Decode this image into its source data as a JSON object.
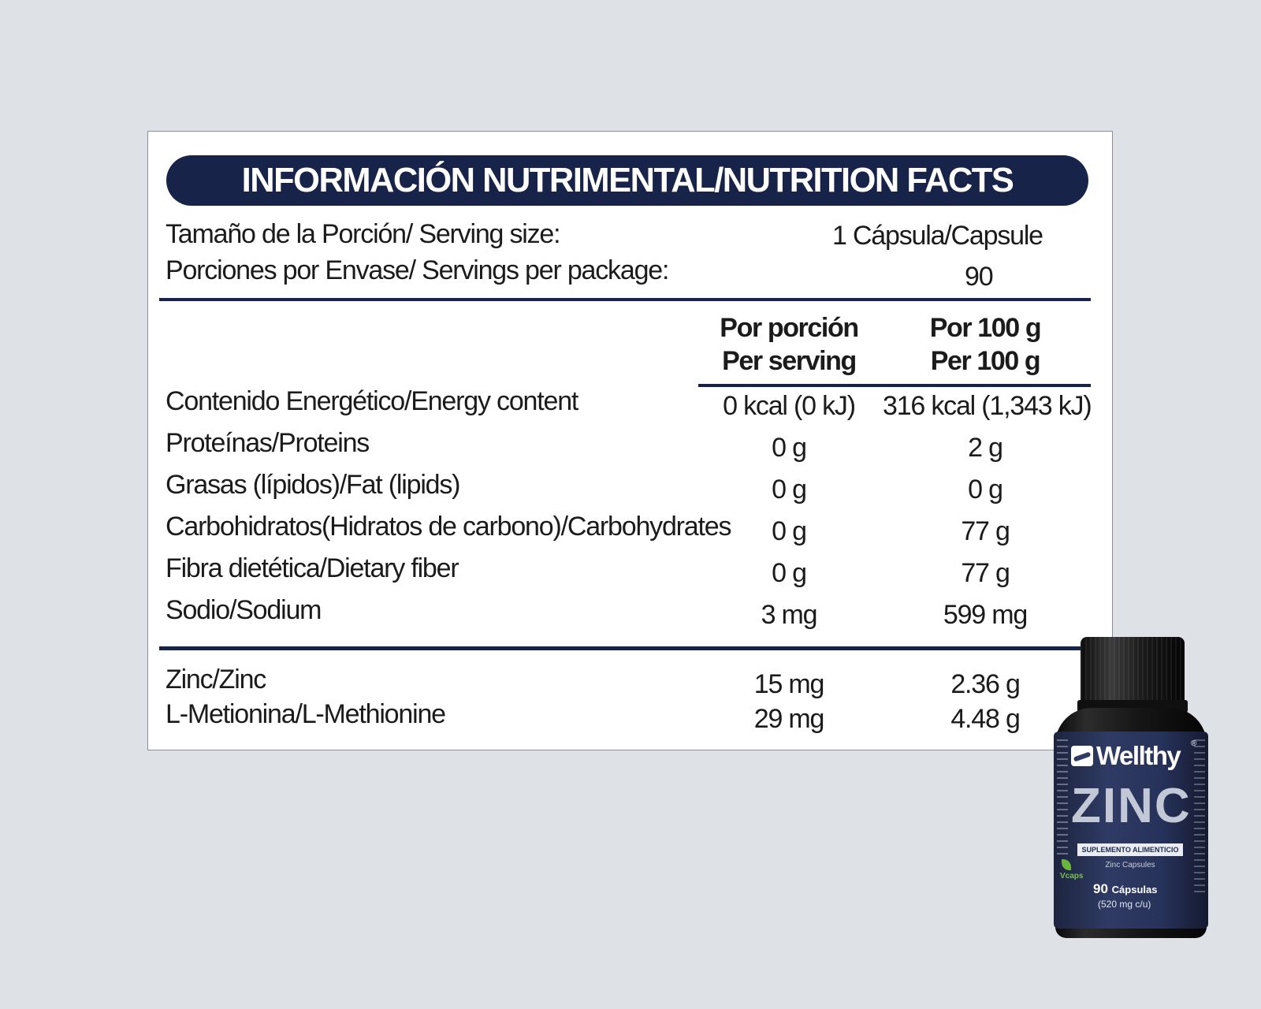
{
  "panel": {
    "title": "INFORMACIÓN NUTRIMENTAL/NUTRITION FACTS",
    "serving_size_label": "Tamaño de la Porción/ Serving size:",
    "serving_size_value": "1 Cápsula/Capsule",
    "servings_label": "Porciones por Envase/ Servings per package:",
    "servings_value": "90",
    "col1_header": [
      "Por porción",
      "Per serving"
    ],
    "col2_header": [
      "Por 100 g",
      "Per 100 g"
    ],
    "rows": [
      {
        "name": "Contenido Energético/Energy content",
        "per_serving": "0 kcal (0 kJ)",
        "per_100g": "316 kcal (1,343 kJ)"
      },
      {
        "name": "Proteínas/Proteins",
        "per_serving": "0 g",
        "per_100g": "2 g"
      },
      {
        "name": "Grasas (lípidos)/Fat (lipids)",
        "per_serving": "0 g",
        "per_100g": "0 g"
      },
      {
        "name": "Carbohidratos(Hidratos de carbono)/Carbohydrates",
        "per_serving": "0 g",
        "per_100g": "77 g"
      },
      {
        "name": "Fibra dietética/Dietary fiber",
        "per_serving": "0 g",
        "per_100g": "77 g"
      },
      {
        "name": "Sodio/Sodium",
        "per_serving": "3 mg",
        "per_100g": "599 mg"
      }
    ],
    "extra_rows": [
      {
        "name": "Zinc/Zinc",
        "per_serving": "15 mg",
        "per_100g": "2.36 g"
      },
      {
        "name": "L-Metionina/L-Methionine",
        "per_serving": "29 mg",
        "per_100g": "4.48 g"
      }
    ]
  },
  "product": {
    "brand": "Wellthy",
    "registered": "®",
    "name": "ZINC",
    "subtitle": "SUPLEMENTO ALIMENTICIO",
    "english_name": "Zinc Capsules",
    "count": "90",
    "count_unit": "Cápsulas",
    "dose": "(520 mg c/u)",
    "vcaps": "Vcaps"
  },
  "colors": {
    "navy": "#182349",
    "background": "#dee2e6",
    "panel": "#ffffff"
  }
}
